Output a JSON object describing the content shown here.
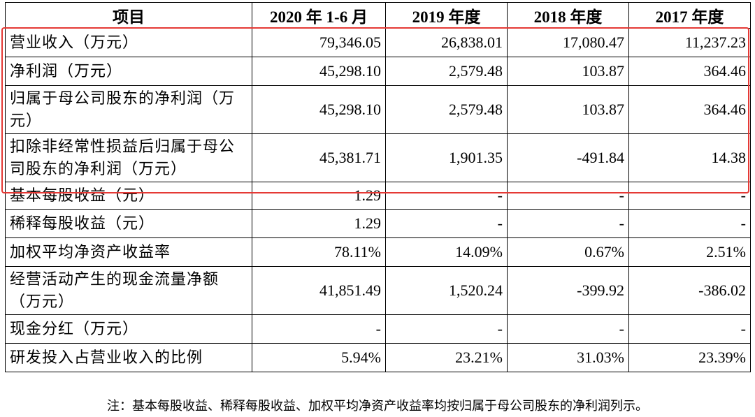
{
  "table": {
    "headers": [
      "项目",
      "2020 年 1-6 月",
      "2019 年度",
      "2018 年度",
      "2017 年度"
    ],
    "rows": [
      {
        "label": "营业收入（万元）",
        "values": [
          "79,346.05",
          "26,838.01",
          "17,080.47",
          "11,237.23"
        ]
      },
      {
        "label": "净利润（万元）",
        "values": [
          "45,298.10",
          "2,579.48",
          "103.87",
          "364.46"
        ]
      },
      {
        "label": "归属于母公司股东的净利润（万元）",
        "values": [
          "45,298.10",
          "2,579.48",
          "103.87",
          "364.46"
        ]
      },
      {
        "label": "扣除非经常性损益后归属于母公司股东的净利润（万元）",
        "values": [
          "45,381.71",
          "1,901.35",
          "-491.84",
          "14.38"
        ]
      },
      {
        "label": "基本每股收益（元）",
        "values": [
          "1.29",
          "-",
          "-",
          "-"
        ]
      },
      {
        "label": "稀释每股收益（元）",
        "values": [
          "1.29",
          "-",
          "-",
          "-"
        ]
      },
      {
        "label": "加权平均净资产收益率",
        "values": [
          "78.11%",
          "14.09%",
          "0.67%",
          "2.51%"
        ]
      },
      {
        "label": "经营活动产生的现金流量净额（万元）",
        "values": [
          "41,851.49",
          "1,520.24",
          "-399.92",
          "-386.02"
        ]
      },
      {
        "label": "现金分红（万元）",
        "values": [
          "-",
          "-",
          "-",
          "-"
        ]
      },
      {
        "label": "研发投入占营业收入的比例",
        "values": [
          "5.94%",
          "23.21%",
          "31.03%",
          "23.39%"
        ]
      }
    ]
  },
  "note": "注：基本每股收益、稀释每股收益、加权平均净资产收益率均按归属于母公司股东的净利润列示。",
  "colors": {
    "highlight_border": "#e53935",
    "table_border": "#000000",
    "background": "#ffffff"
  }
}
